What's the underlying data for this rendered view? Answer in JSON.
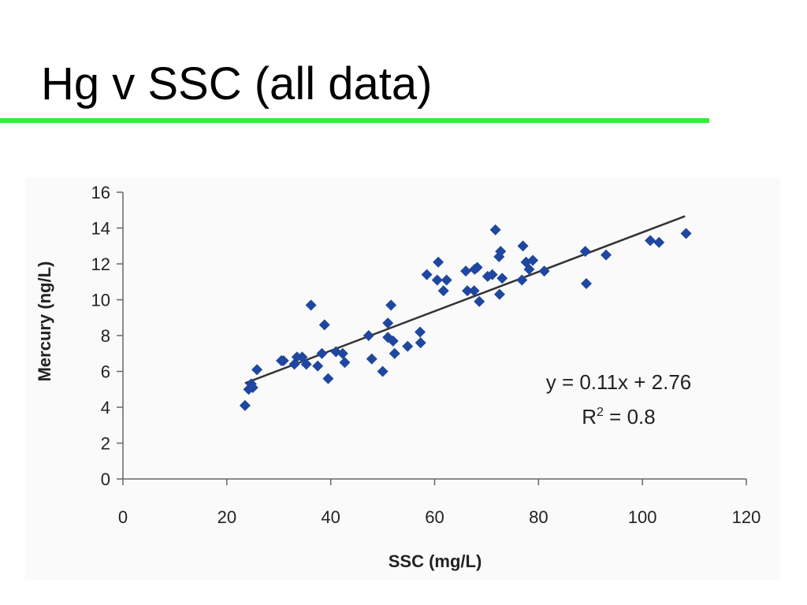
{
  "slide": {
    "title": "Hg v SSC (all data)",
    "rule_color": "#33ee33"
  },
  "chart_data": {
    "type": "scatter",
    "title": "",
    "xlabel": "SSC (mg/L)",
    "ylabel": "Mercury (ng/L)",
    "xlim": [
      0,
      120
    ],
    "ylim": [
      0,
      16
    ],
    "x_ticks": [
      0,
      20,
      40,
      60,
      80,
      100,
      120
    ],
    "y_ticks": [
      0,
      2,
      4,
      6,
      8,
      10,
      12,
      14,
      16
    ],
    "grid": false,
    "legend": "none",
    "marker": "diamond",
    "marker_color": "#1f47a0",
    "series": [
      {
        "points": [
          [
            23.5,
            4.1
          ],
          [
            24.2,
            5.0
          ],
          [
            24.7,
            5.3
          ],
          [
            25.0,
            5.1
          ],
          [
            25.8,
            6.1
          ],
          [
            30.5,
            6.6
          ],
          [
            30.9,
            6.6
          ],
          [
            33.0,
            6.4
          ],
          [
            33.5,
            6.8
          ],
          [
            34.5,
            6.8
          ],
          [
            35.3,
            6.4
          ],
          [
            36.2,
            9.7
          ],
          [
            37.5,
            6.3
          ],
          [
            38.3,
            7.0
          ],
          [
            38.8,
            8.6
          ],
          [
            39.5,
            5.6
          ],
          [
            41.0,
            7.1
          ],
          [
            42.3,
            7.0
          ],
          [
            42.7,
            6.5
          ],
          [
            47.3,
            8.0
          ],
          [
            47.9,
            6.7
          ],
          [
            50.0,
            6.0
          ],
          [
            51.0,
            8.7
          ],
          [
            51.0,
            7.9
          ],
          [
            51.6,
            9.7
          ],
          [
            52.0,
            7.7
          ],
          [
            52.3,
            7.0
          ],
          [
            54.8,
            7.4
          ],
          [
            57.2,
            8.2
          ],
          [
            57.3,
            7.6
          ],
          [
            58.5,
            11.4
          ],
          [
            60.5,
            11.1
          ],
          [
            60.7,
            12.1
          ],
          [
            61.7,
            10.5
          ],
          [
            62.3,
            11.1
          ],
          [
            66.0,
            11.6
          ],
          [
            66.3,
            10.5
          ],
          [
            67.6,
            10.5
          ],
          [
            67.7,
            11.7
          ],
          [
            68.2,
            11.8
          ],
          [
            68.6,
            9.9
          ],
          [
            70.2,
            11.3
          ],
          [
            71.1,
            11.4
          ],
          [
            71.7,
            13.9
          ],
          [
            72.4,
            12.4
          ],
          [
            72.5,
            10.3
          ],
          [
            72.7,
            12.7
          ],
          [
            73.0,
            11.2
          ],
          [
            76.8,
            11.1
          ],
          [
            77.0,
            13.0
          ],
          [
            77.6,
            12.1
          ],
          [
            78.2,
            11.7
          ],
          [
            78.9,
            12.2
          ],
          [
            81.1,
            11.6
          ],
          [
            89.0,
            12.7
          ],
          [
            89.2,
            10.9
          ],
          [
            93.0,
            12.5
          ],
          [
            101.5,
            13.3
          ],
          [
            103.2,
            13.2
          ],
          [
            108.4,
            13.7
          ]
        ]
      }
    ],
    "trendline": {
      "x_range": [
        23.5,
        108.2
      ],
      "color": "#333333",
      "equation": "y = 0.11x + 2.76",
      "r2_base": "R",
      "r2_sup": "2",
      "r2_value": " = 0.8"
    }
  }
}
